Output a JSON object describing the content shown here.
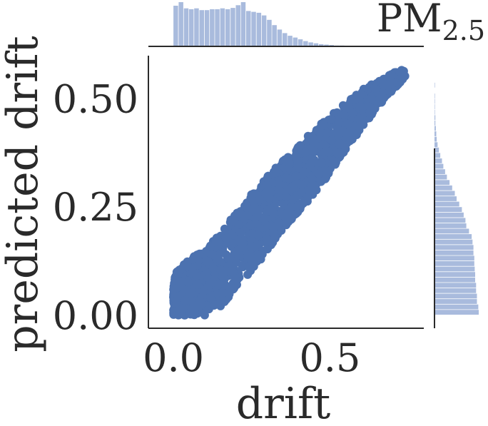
{
  "chart_data": {
    "type": "scatter",
    "title": "PM",
    "title_subscript": "2.5",
    "xlabel": "drift",
    "ylabel": "predicted drift",
    "xlim": [
      -0.08,
      0.8
    ],
    "ylim": [
      -0.03,
      0.6
    ],
    "x_ticks": [
      0.0,
      0.5
    ],
    "x_tick_labels": [
      "0.0",
      "0.5"
    ],
    "y_ticks": [
      0.0,
      0.25,
      0.5
    ],
    "y_tick_labels": [
      "0.00",
      "0.25",
      "0.50"
    ],
    "grid": false,
    "point_color": "#4c72b0",
    "hist_color": "#a9bbdd",
    "scatter_band": {
      "x_edges": [
        0.0,
        0.02,
        0.05,
        0.1,
        0.15,
        0.2,
        0.25,
        0.3,
        0.35,
        0.4,
        0.45,
        0.5,
        0.55,
        0.6,
        0.65,
        0.7,
        0.74
      ],
      "y_lower": [
        0.0,
        0.0,
        0.0,
        0.0,
        0.02,
        0.06,
        0.1,
        0.15,
        0.2,
        0.24,
        0.28,
        0.33,
        0.38,
        0.43,
        0.48,
        0.52,
        0.55
      ],
      "y_upper": [
        0.09,
        0.11,
        0.13,
        0.15,
        0.19,
        0.24,
        0.28,
        0.32,
        0.36,
        0.39,
        0.43,
        0.46,
        0.49,
        0.52,
        0.54,
        0.56,
        0.57
      ]
    },
    "top_histogram": {
      "bin_start": 0.0,
      "bin_width": 0.0166,
      "counts": [
        0.92,
        1.0,
        0.86,
        0.84,
        0.86,
        0.82,
        0.82,
        0.84,
        0.84,
        0.86,
        0.84,
        0.87,
        0.93,
        1.0,
        0.8,
        0.78,
        0.76,
        0.7,
        0.6,
        0.48,
        0.38,
        0.3,
        0.24,
        0.2,
        0.16,
        0.12,
        0.09,
        0.07,
        0.05,
        0.04,
        0.03,
        0.02,
        0.02,
        0.01,
        0.01
      ]
    },
    "right_histogram": {
      "bin_start": 0.0,
      "bin_width": 0.0125,
      "counts": [
        1.0,
        0.99,
        0.96,
        0.96,
        0.94,
        0.94,
        0.92,
        0.92,
        0.91,
        0.9,
        0.9,
        0.88,
        0.88,
        0.86,
        0.84,
        0.78,
        0.72,
        0.7,
        0.66,
        0.62,
        0.56,
        0.5,
        0.46,
        0.4,
        0.34,
        0.28,
        0.24,
        0.2,
        0.17,
        0.13,
        0.1,
        0.07,
        0.05,
        0.04,
        0.03,
        0.02,
        0.02,
        0.01,
        0.01,
        0.01,
        0.01,
        0.0,
        0.01
      ]
    }
  }
}
